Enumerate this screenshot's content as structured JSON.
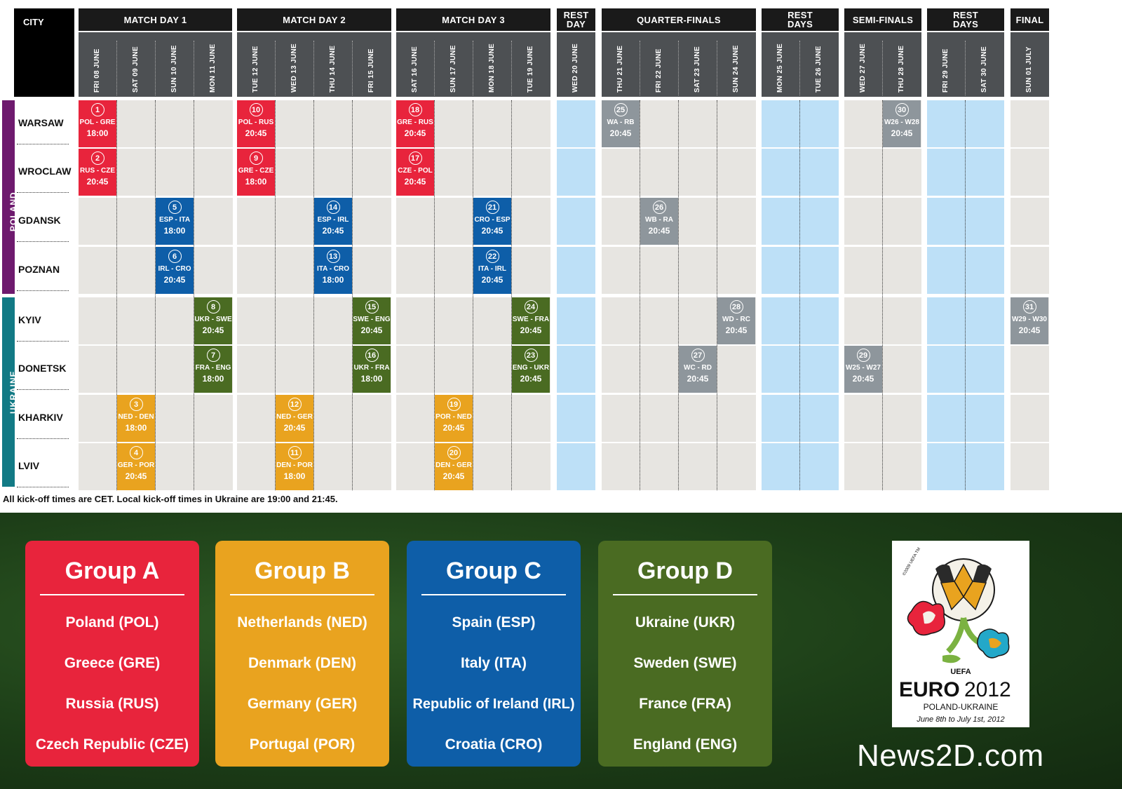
{
  "headers": {
    "city": "CITY",
    "md1": "MATCH DAY 1",
    "md2": "MATCH DAY 2",
    "md3": "MATCH DAY 3",
    "rest_day": "REST DAY",
    "qf": "QUARTER-FINALS",
    "rest_days_1": "REST DAYS",
    "sf": "SEMI-FINALS",
    "rest_days_2": "REST DAYS",
    "final": "FINAL"
  },
  "dates": [
    "FRI 08 JUNE",
    "SAT 09 JUNE",
    "SUN 10 JUNE",
    "MON 11 JUNE",
    "TUE 12 JUNE",
    "WED 13 JUNE",
    "THU 14 JUNE",
    "FRI 15 JUNE",
    "SAT 16 JUNE",
    "SUN 17 JUNE",
    "MON 18 JUNE",
    "TUE 19 JUNE",
    "WED 20 JUNE",
    "THU 21 JUNE",
    "FRI 22 JUNE",
    "SAT 23 JUNE",
    "SUN 24 JUNE",
    "MON 25 JUNE",
    "TUE 26 JUNE",
    "WED 27 JUNE",
    "THU 28 JUNE",
    "FRI 29 JUNE",
    "SAT 30 JUNE",
    "SUN 01 JULY"
  ],
  "countries": {
    "poland": "POLAND",
    "ukraine": "UKRAINE"
  },
  "cities": [
    "WARSAW",
    "WROCLAW",
    "GDANSK",
    "POZNAN",
    "KYIV",
    "DONETSK",
    "KHARKIV",
    "LVIV"
  ],
  "colors": {
    "group_a": "#e8243c",
    "group_b": "#e9a31f",
    "group_c": "#0e5ea8",
    "group_d": "#4a6b22",
    "knockout": "#8e969c",
    "poland_bar": "#6e1a6e",
    "ukraine_bar": "#127a85",
    "rest": "#bde0f7",
    "empty": "#e7e5e1"
  },
  "matches": [
    {
      "num": "1",
      "teams": "POL - GRE",
      "time": "18:00",
      "city": 0,
      "day": 0,
      "group": "a"
    },
    {
      "num": "2",
      "teams": "RUS - CZE",
      "time": "20:45",
      "city": 1,
      "day": 0,
      "group": "a"
    },
    {
      "num": "3",
      "teams": "NED - DEN",
      "time": "18:00",
      "city": 6,
      "day": 1,
      "group": "b"
    },
    {
      "num": "4",
      "teams": "GER - POR",
      "time": "20:45",
      "city": 7,
      "day": 1,
      "group": "b"
    },
    {
      "num": "5",
      "teams": "ESP - ITA",
      "time": "18:00",
      "city": 2,
      "day": 2,
      "group": "c"
    },
    {
      "num": "6",
      "teams": "IRL - CRO",
      "time": "20:45",
      "city": 3,
      "day": 2,
      "group": "c"
    },
    {
      "num": "7",
      "teams": "FRA - ENG",
      "time": "18:00",
      "city": 5,
      "day": 3,
      "group": "d"
    },
    {
      "num": "8",
      "teams": "UKR - SWE",
      "time": "20:45",
      "city": 4,
      "day": 3,
      "group": "d"
    },
    {
      "num": "9",
      "teams": "GRE - CZE",
      "time": "18:00",
      "city": 1,
      "day": 4,
      "group": "a"
    },
    {
      "num": "10",
      "teams": "POL - RUS",
      "time": "20:45",
      "city": 0,
      "day": 4,
      "group": "a"
    },
    {
      "num": "11",
      "teams": "DEN - POR",
      "time": "18:00",
      "city": 7,
      "day": 5,
      "group": "b"
    },
    {
      "num": "12",
      "teams": "NED - GER",
      "time": "20:45",
      "city": 6,
      "day": 5,
      "group": "b"
    },
    {
      "num": "13",
      "teams": "ITA - CRO",
      "time": "18:00",
      "city": 3,
      "day": 6,
      "group": "c"
    },
    {
      "num": "14",
      "teams": "ESP - IRL",
      "time": "20:45",
      "city": 2,
      "day": 6,
      "group": "c"
    },
    {
      "num": "15",
      "teams": "SWE - ENG",
      "time": "20:45",
      "city": 4,
      "day": 7,
      "group": "d"
    },
    {
      "num": "16",
      "teams": "UKR - FRA",
      "time": "18:00",
      "city": 5,
      "day": 7,
      "group": "d"
    },
    {
      "num": "17",
      "teams": "CZE - POL",
      "time": "20:45",
      "city": 1,
      "day": 8,
      "group": "a"
    },
    {
      "num": "18",
      "teams": "GRE - RUS",
      "time": "20:45",
      "city": 0,
      "day": 8,
      "group": "a"
    },
    {
      "num": "19",
      "teams": "POR - NED",
      "time": "20:45",
      "city": 6,
      "day": 9,
      "group": "b"
    },
    {
      "num": "20",
      "teams": "DEN - GER",
      "time": "20:45",
      "city": 7,
      "day": 9,
      "group": "b"
    },
    {
      "num": "21",
      "teams": "CRO - ESP",
      "time": "20:45",
      "city": 2,
      "day": 10,
      "group": "c"
    },
    {
      "num": "22",
      "teams": "ITA - IRL",
      "time": "20:45",
      "city": 3,
      "day": 10,
      "group": "c"
    },
    {
      "num": "23",
      "teams": "ENG - UKR",
      "time": "20:45",
      "city": 5,
      "day": 11,
      "group": "d"
    },
    {
      "num": "24",
      "teams": "SWE - FRA",
      "time": "20:45",
      "city": 4,
      "day": 11,
      "group": "d"
    },
    {
      "num": "25",
      "teams": "WA - RB",
      "time": "20:45",
      "city": 0,
      "day": 13,
      "group": "k"
    },
    {
      "num": "26",
      "teams": "WB - RA",
      "time": "20:45",
      "city": 2,
      "day": 14,
      "group": "k"
    },
    {
      "num": "27",
      "teams": "WC - RD",
      "time": "20:45",
      "city": 5,
      "day": 15,
      "group": "k"
    },
    {
      "num": "28",
      "teams": "WD - RC",
      "time": "20:45",
      "city": 4,
      "day": 16,
      "group": "k"
    },
    {
      "num": "29",
      "teams": "W25 - W27",
      "time": "20:45",
      "city": 5,
      "day": 19,
      "group": "k"
    },
    {
      "num": "30",
      "teams": "W26 - W28",
      "time": "20:45",
      "city": 0,
      "day": 20,
      "group": "k"
    },
    {
      "num": "31",
      "teams": "W29 - W30",
      "time": "20:45",
      "city": 4,
      "day": 23,
      "group": "k"
    }
  ],
  "note": "All kick-off times are CET. Local kick-off times in Ukraine are 19:00 and 21:45.",
  "groups": [
    {
      "title": "Group A",
      "color": "#e8243c",
      "teams": [
        "Poland (POL)",
        "Greece (GRE)",
        "Russia (RUS)",
        "Czech Republic (CZE)"
      ]
    },
    {
      "title": "Group B",
      "color": "#e9a31f",
      "teams": [
        "Netherlands (NED)",
        "Denmark (DEN)",
        "Germany (GER)",
        "Portugal (POR)"
      ]
    },
    {
      "title": "Group C",
      "color": "#0e5ea8",
      "teams": [
        "Spain (ESP)",
        "Italy (ITA)",
        "Republic of Ireland (IRL)",
        "Croatia (CRO)"
      ]
    },
    {
      "title": "Group D",
      "color": "#4a6b22",
      "teams": [
        "Ukraine (UKR)",
        "Sweden (SWE)",
        "France (FRA)",
        "England (ENG)"
      ]
    }
  ],
  "logo": {
    "uefa": "UEFA",
    "copyright": "©2009 UEFA TM",
    "euro": "EURO",
    "year": "2012",
    "hosts": "POLAND-UKRAINE",
    "dates": "June 8th to July 1st, 2012"
  },
  "brand": "News2D.com"
}
